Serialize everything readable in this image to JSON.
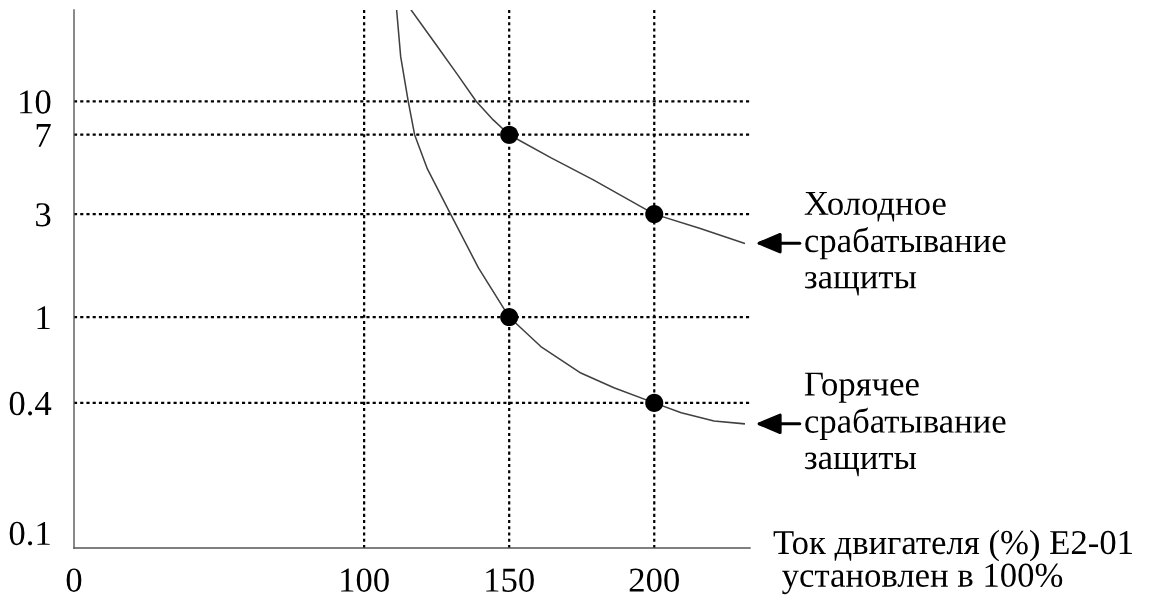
{
  "chart_data": {
    "type": "line",
    "xlabel": "Ток двигателя (%) E2-01\n установлен в 100%",
    "xlim": [
      0,
      233
    ],
    "xticks": [
      0,
      100,
      150,
      200
    ],
    "ylim": [
      0.085,
      26.5
    ],
    "yticks": [
      0.1,
      0.4,
      1,
      3,
      7,
      10
    ],
    "log": "y",
    "series": [
      {
        "color": "#404040",
        "x": [
          116.2,
          124.7,
          132,
          138.6,
          144.5,
          150,
          164.3,
          179,
          200,
          215.6,
          231
        ],
        "values": [
          26.5,
          18.4,
          13.4,
          10,
          8.2,
          7,
          5.48,
          4.32,
          3,
          2.58,
          2.2
        ]
      },
      {
        "color": "#404040",
        "x": [
          111.2,
          112.6,
          115.2,
          117.4,
          121.8,
          129.8,
          139.4,
          150,
          160.9,
          174.7,
          186.1,
          200,
          209.3,
          220.6,
          231
        ],
        "values": [
          26.5,
          16.1,
          10,
          7,
          4.86,
          3,
          1.69,
          1,
          0.73,
          0.55,
          0.47,
          0.4,
          0.36,
          0.33,
          0.32
        ]
      },
      {
        "type": "scatter",
        "color": "#000000",
        "marker": "circle",
        "x": [
          150,
          200,
          150,
          200
        ],
        "values": [
          7,
          3,
          1,
          0.4
        ]
      }
    ],
    "ref_lines": [
      {
        "axis": "y",
        "value": 10,
        "color": "#000000",
        "line_style": "dotted"
      },
      {
        "axis": "y",
        "value": 7,
        "color": "#000000",
        "line_style": "dotted"
      },
      {
        "axis": "y",
        "value": 3,
        "color": "#000000",
        "line_style": "dotted"
      },
      {
        "axis": "y",
        "value": 1,
        "color": "#000000",
        "line_style": "dotted"
      },
      {
        "axis": "y",
        "value": 0.4,
        "color": "#000000",
        "line_style": "dotted"
      },
      {
        "axis": "x",
        "value": 100,
        "color": "#000000",
        "line_style": "dotted"
      },
      {
        "axis": "x",
        "value": 150,
        "color": "#000000",
        "line_style": "dotted"
      },
      {
        "axis": "x",
        "value": 200,
        "color": "#000000",
        "line_style": "dotted"
      }
    ],
    "annotations": [
      {
        "text": "Холодное\nсрабатывание\nзащиты",
        "x": 231,
        "y": 2.2
      },
      {
        "text": "Горячее\nсрабатывание\nзащиты",
        "x": 231,
        "y": 0.32
      }
    ]
  }
}
